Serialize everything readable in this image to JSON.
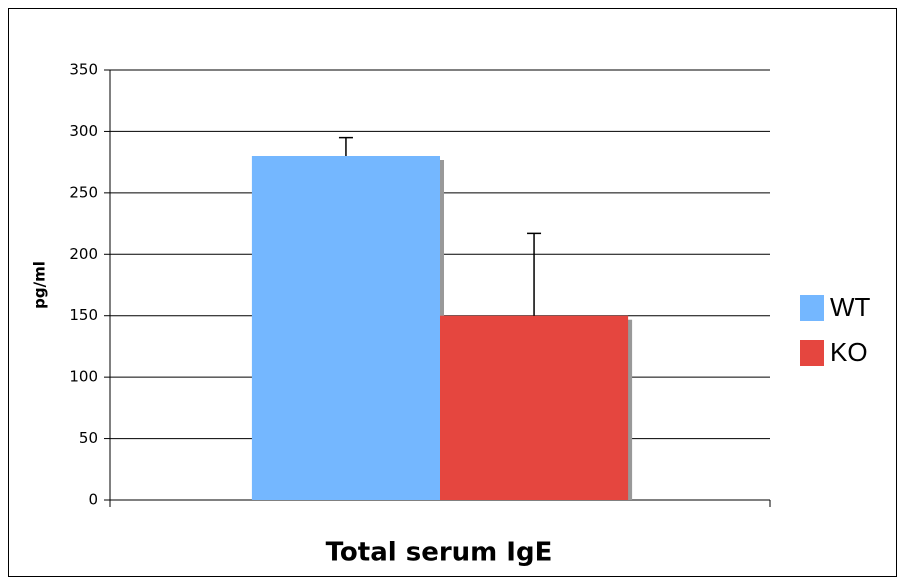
{
  "chart_data": {
    "type": "bar",
    "x_label": "Total serum IgE",
    "y_label": "pg/ml",
    "categories": [
      null
    ],
    "series": [
      {
        "name": "WT",
        "color": "#74b7ff",
        "values": [
          280
        ],
        "errors": [
          15
        ]
      },
      {
        "name": "KO",
        "color": "#e5463f",
        "values": [
          150
        ],
        "errors": [
          67
        ]
      }
    ],
    "ylim": [
      0,
      350
    ],
    "yticks": [
      0,
      50,
      100,
      150,
      200,
      250,
      300,
      350
    ],
    "grid": true,
    "legend": "right"
  }
}
